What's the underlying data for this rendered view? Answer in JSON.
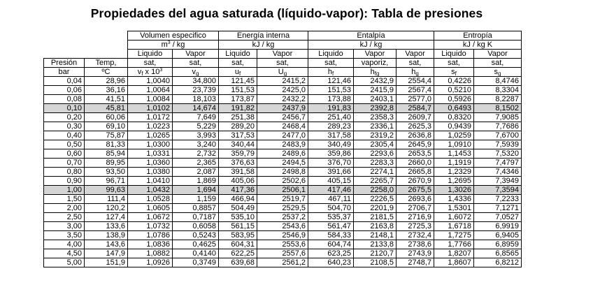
{
  "title": "Propiedades del agua saturada (líquido-vapor): Tabla de presiones",
  "header": {
    "groups": {
      "volumen": "Volumen especifico",
      "energia": "Energía interna",
      "entalpia": "Entalpía",
      "entropia": "Entropía"
    },
    "units": {
      "volumen_main": "m",
      "volumen_sup": "3",
      "volumen_rest": " / kg",
      "energia": "kJ / kg",
      "entalpia": "kJ / kg",
      "entropia": "kJ / kg K"
    },
    "row3": {
      "vol_liq": "Liquido",
      "vol_vap": "Vapor",
      "en_liq": "Liquido",
      "en_vap": "Vapor",
      "h_liq": "Liquido",
      "h_vap1": "Vapor",
      "h_vap2": "Vapor",
      "s_liq": "Liquido",
      "s_vap": "Vapor"
    },
    "row4": {
      "presion": "Presión",
      "temp": "Temp,",
      "vol_liq": "sat,",
      "vol_vap": "sat,",
      "en_liq": "sat,",
      "en_vap": "sat,",
      "h_liq": "sat,",
      "h_fg": "vaporiz,",
      "h_vap": "sat,",
      "s_liq": "sat,",
      "s_vap": "sat,"
    },
    "row5": {
      "bar": "bar",
      "degc": "ºC",
      "vf_main": "v",
      "vf_sub": "f",
      "vf_mult": " x 10",
      "vf_exp": "3",
      "vg_main": "v",
      "vg_sub": "g",
      "uf_main": "u",
      "uf_sub": "f",
      "ug_main": "U",
      "ug_sub": "g",
      "hf_main": "h",
      "hf_sub": "f",
      "hfg_main": "h",
      "hfg_sub": "fg",
      "hg_main": "h",
      "hg_sub": "g",
      "sf_main": "s",
      "sf_sub": "f",
      "sg_main": "s",
      "sg_sub": "g"
    }
  },
  "rows": [
    {
      "c": [
        "0,04",
        "28,96",
        "1,0040",
        "34,800",
        "121,45",
        "2415,2",
        "121,46",
        "2432,9",
        "2554,4",
        "0,4226",
        "8,4746"
      ]
    },
    {
      "c": [
        "0,06",
        "36,16",
        "1,0064",
        "23,739",
        "151,53",
        "2425,0",
        "151,53",
        "2415,9",
        "2567,4",
        "0,5210",
        "8,3304"
      ]
    },
    {
      "c": [
        "0,08",
        "41,51",
        "1,0084",
        "18,103",
        "173,87",
        "2432,2",
        "173,88",
        "2403,1",
        "2577,0",
        "0,5926",
        "8,2287"
      ]
    },
    {
      "c": [
        "0,10",
        "45,81",
        "1,0102",
        "14,674",
        "191,82",
        "2437,9",
        "191,83",
        "2392,8",
        "2584,7",
        "0,6493",
        "8,1502"
      ]
    },
    {
      "c": [
        "0,20",
        "60,06",
        "1,0172",
        "7,649",
        "251,38",
        "2456,7",
        "251,40",
        "2358,3",
        "2609,7",
        "0,8320",
        "7,9085"
      ]
    },
    {
      "c": [
        "0,30",
        "69,10",
        "1,0223",
        "5,229",
        "289,20",
        "2468,4",
        "289,23",
        "2336,1",
        "2625,3",
        "0,9439",
        "7,7686"
      ]
    },
    {
      "c": [
        "0,40",
        "75,87",
        "1,0265",
        "3,993",
        "317,53",
        "2477,0",
        "317,58",
        "2319,2",
        "2636,8",
        "1,0259",
        "7,6700"
      ]
    },
    {
      "c": [
        "0,50",
        "81,33",
        "1,0300",
        "3,240",
        "340,44",
        "2483,9",
        "340,49",
        "2305,4",
        "2645,9",
        "1,0910",
        "7,5939"
      ]
    },
    {
      "c": [
        "0,60",
        "85,94",
        "1,0331",
        "2,732",
        "359,79",
        "2489,6",
        "359,86",
        "2293,6",
        "2653,5",
        "1,1453",
        "7,5320"
      ]
    },
    {
      "c": [
        "0,70",
        "89,95",
        "1,0360",
        "2,365",
        "376,63",
        "2494,5",
        "376,70",
        "2283,3",
        "2660,0",
        "1,1919",
        "7,4797"
      ]
    },
    {
      "c": [
        "0,80",
        "93,50",
        "1,0380",
        "2,087",
        "391,58",
        "2498,8",
        "391,66",
        "2274,1",
        "2665,8",
        "1,2329",
        "7,4346"
      ]
    },
    {
      "c": [
        "0,90",
        "96,71",
        "1,0410",
        "1,869",
        "405,06",
        "2502,6",
        "405,15",
        "2265,7",
        "2670,9",
        "1,2695",
        "7,3949"
      ]
    },
    {
      "c": [
        "1,00",
        "99,63",
        "1,0432",
        "1,694",
        "417,36",
        "2506,1",
        "417,46",
        "2258,0",
        "2675,5",
        "1,3026",
        "7,3594"
      ]
    },
    {
      "c": [
        "1,50",
        "111,4",
        "1,0528",
        "1,159",
        "466,94",
        "2519,7",
        "467,11",
        "2226,5",
        "2693,6",
        "1,4336",
        "7,2233"
      ]
    },
    {
      "c": [
        "2,00",
        "120,2",
        "1,0605",
        "0,8857",
        "504,49",
        "2529,5",
        "504,70",
        "2201,9",
        "2706,7",
        "1,5301",
        "7,1271"
      ]
    },
    {
      "c": [
        "2,50",
        "127,4",
        "1,0672",
        "0,7187",
        "535,10",
        "2537,2",
        "535,37",
        "2181,5",
        "2716,9",
        "1,6072",
        "7,0527"
      ]
    },
    {
      "c": [
        "3,00",
        "133,6",
        "1,0732",
        "0,6058",
        "561,15",
        "2543,6",
        "561,47",
        "2163,8",
        "2725,3",
        "1,6718",
        "6,9919"
      ]
    },
    {
      "c": [
        "3,50",
        "138,9",
        "1,0786",
        "0,5243",
        "583,95",
        "2546,9",
        "584,33",
        "2148,1",
        "2732,4",
        "1,7275",
        "6,9405"
      ]
    },
    {
      "c": [
        "4,00",
        "143,6",
        "1,0836",
        "0,4625",
        "604,31",
        "2553,6",
        "604,74",
        "2133,8",
        "2738,6",
        "1,7766",
        "6,8959"
      ]
    },
    {
      "c": [
        "4,50",
        "147,9",
        "1,0882",
        "0,4140",
        "622,25",
        "2557,6",
        "623,25",
        "2120,7",
        "2743,9",
        "1,8207",
        "6,8565"
      ]
    },
    {
      "c": [
        "5,00",
        "151,9",
        "1,0926",
        "0,3749",
        "639,68",
        "2561,2",
        "640,23",
        "2108,5",
        "2748,7",
        "1,8607",
        "6,8212"
      ]
    }
  ],
  "highlighted_rows": [
    3,
    12
  ]
}
